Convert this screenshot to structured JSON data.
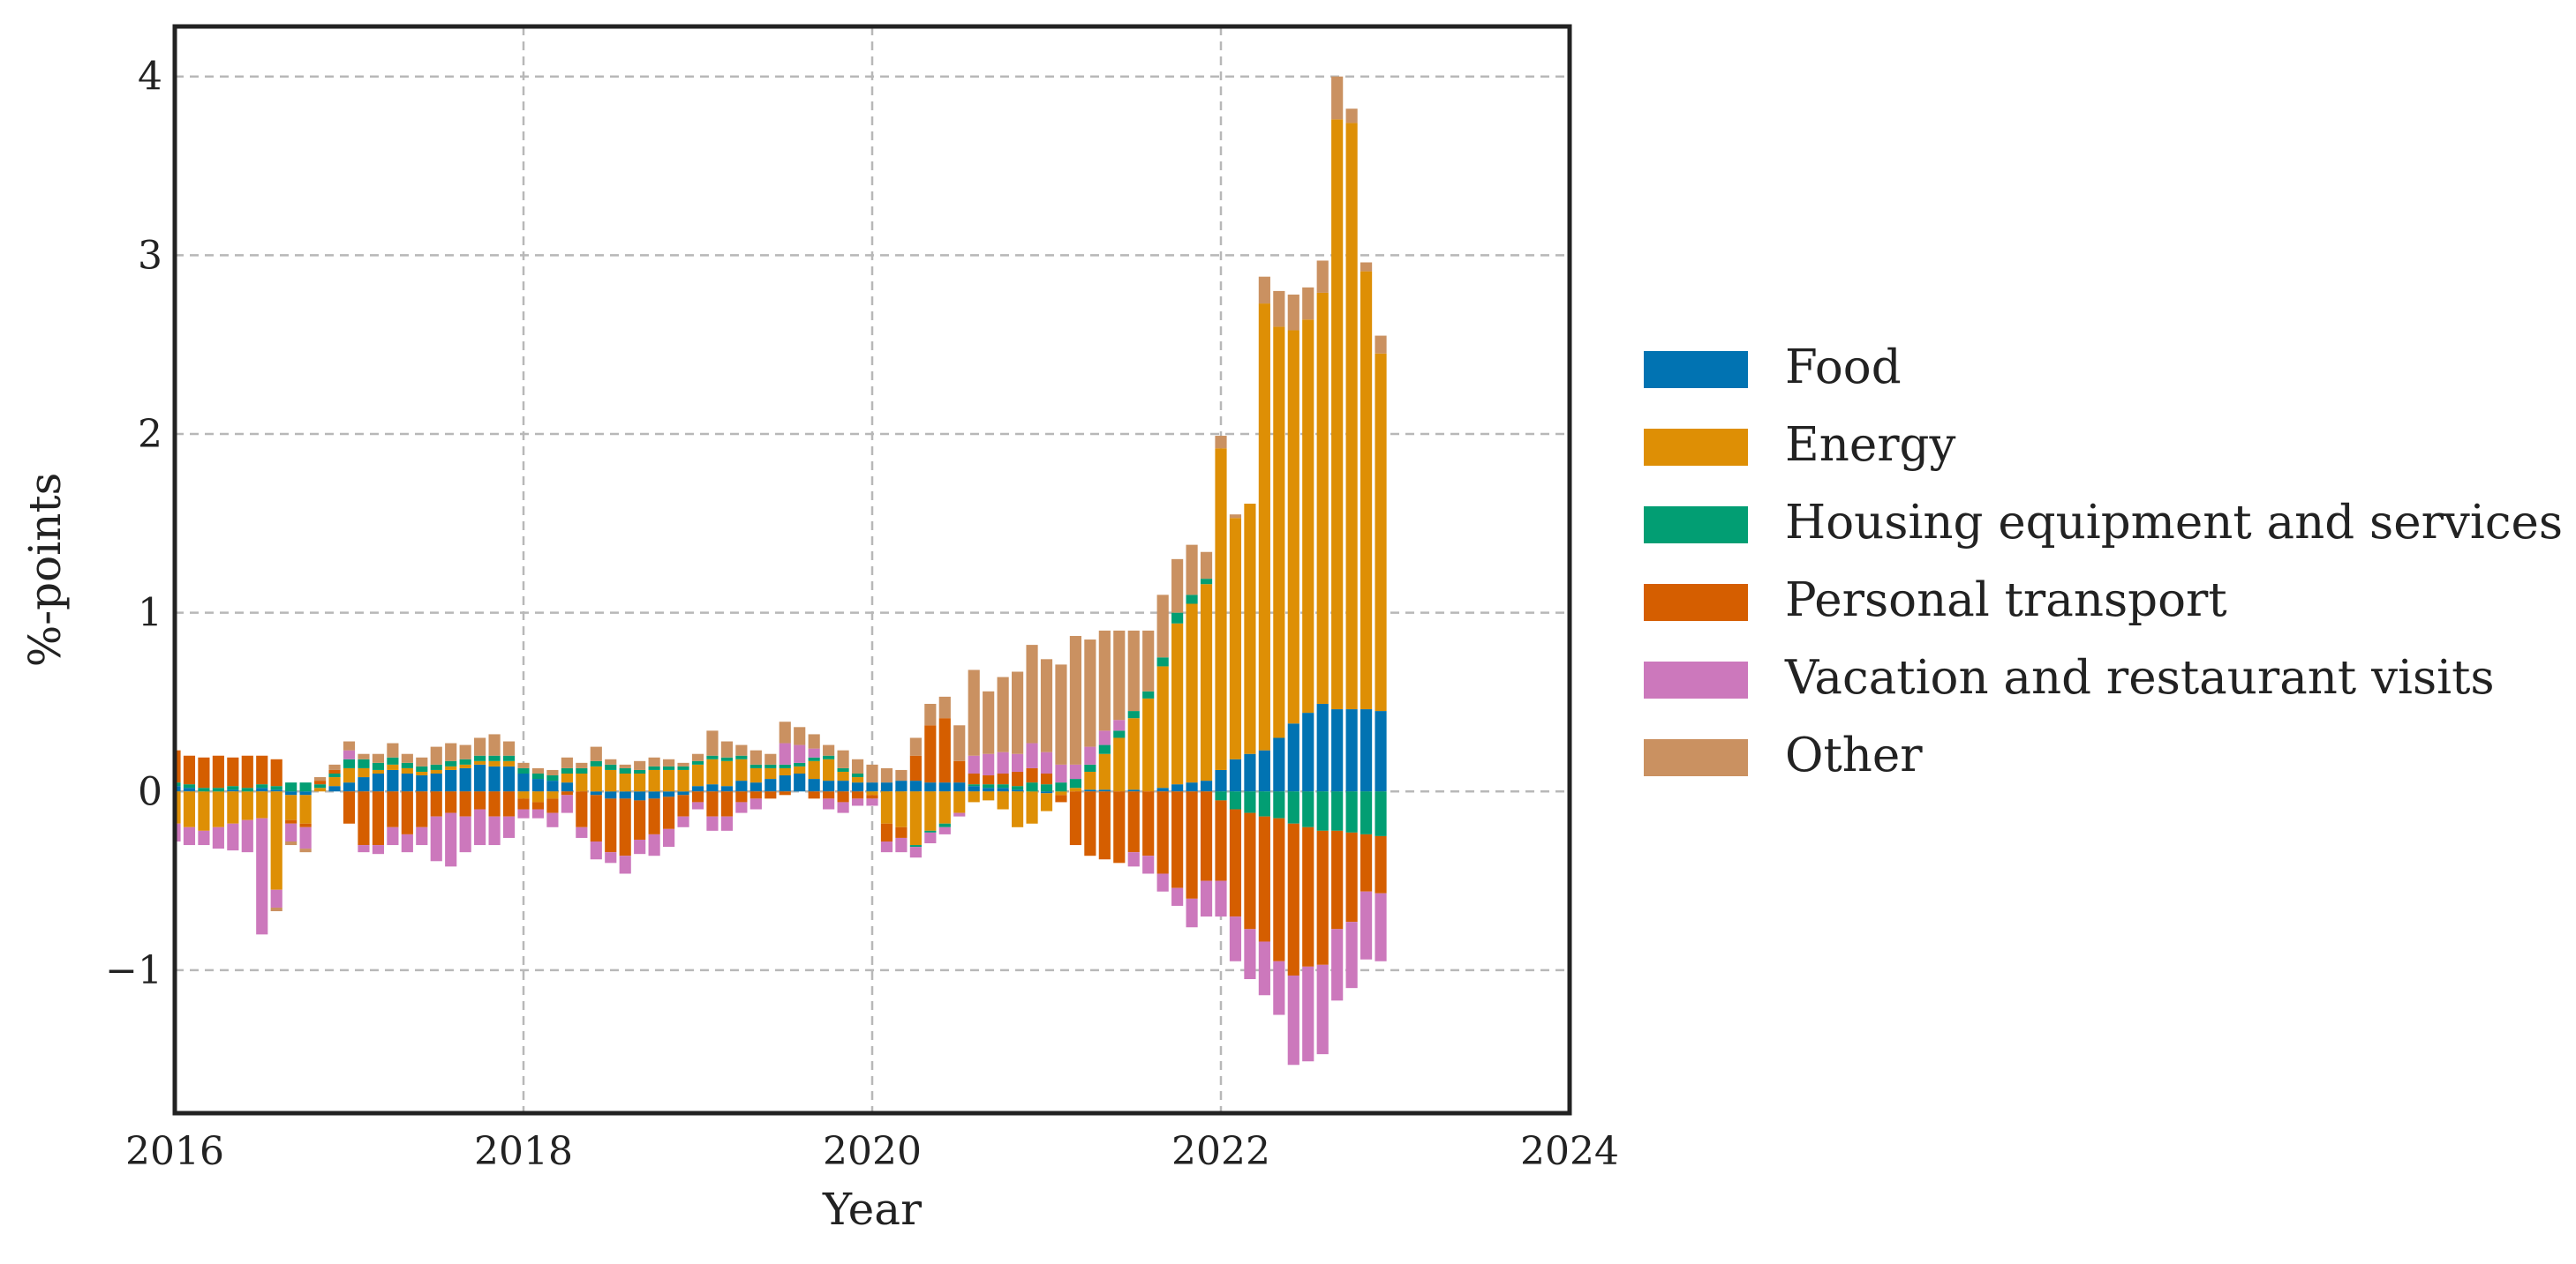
{
  "chart_data": {
    "type": "bar",
    "stacked": true,
    "title": "",
    "xlabel": "Year",
    "ylabel": "%-points",
    "xlim": [
      2016,
      2024
    ],
    "ylim": [
      -1.8,
      4.28
    ],
    "xticks": [
      2016,
      2018,
      2020,
      2022,
      2024
    ],
    "xtick_labels": [
      "2016",
      "2018",
      "2020",
      "2022",
      "2024"
    ],
    "yticks": [
      -1,
      0,
      1,
      2,
      3,
      4
    ],
    "ytick_labels": [
      "−1",
      "0",
      "1",
      "2",
      "3",
      "4"
    ],
    "grid": true,
    "legend_position": "right",
    "x_start": "2016-01",
    "x_step": "month",
    "x": [
      "2016-01",
      "2016-02",
      "2016-03",
      "2016-04",
      "2016-05",
      "2016-06",
      "2016-07",
      "2016-08",
      "2016-09",
      "2016-10",
      "2016-11",
      "2016-12",
      "2017-01",
      "2017-02",
      "2017-03",
      "2017-04",
      "2017-05",
      "2017-06",
      "2017-07",
      "2017-08",
      "2017-09",
      "2017-10",
      "2017-11",
      "2017-12",
      "2018-01",
      "2018-02",
      "2018-03",
      "2018-04",
      "2018-05",
      "2018-06",
      "2018-07",
      "2018-08",
      "2018-09",
      "2018-10",
      "2018-11",
      "2018-12",
      "2019-01",
      "2019-02",
      "2019-03",
      "2019-04",
      "2019-05",
      "2019-06",
      "2019-07",
      "2019-08",
      "2019-09",
      "2019-10",
      "2019-11",
      "2019-12",
      "2020-01",
      "2020-02",
      "2020-03",
      "2020-04",
      "2020-05",
      "2020-06",
      "2020-07",
      "2020-08",
      "2020-09",
      "2020-10",
      "2020-11",
      "2020-12",
      "2021-01",
      "2021-02",
      "2021-03",
      "2021-04",
      "2021-05",
      "2021-06",
      "2021-07",
      "2021-08",
      "2021-09",
      "2021-10",
      "2021-11",
      "2021-12",
      "2022-01",
      "2022-02",
      "2022-03",
      "2022-04",
      "2022-05",
      "2022-06",
      "2022-07",
      "2022-08",
      "2022-09",
      "2022-10",
      "2022-11",
      "2022-12"
    ],
    "series": [
      {
        "name": "Food",
        "color": "#0173b2",
        "values": [
          0.03,
          0.02,
          0.0,
          0.0,
          0.01,
          0.0,
          0.02,
          0.01,
          -0.02,
          -0.02,
          0.0,
          0.03,
          0.05,
          0.08,
          0.1,
          0.12,
          0.1,
          0.09,
          0.1,
          0.12,
          0.13,
          0.15,
          0.14,
          0.14,
          0.1,
          0.07,
          0.06,
          0.05,
          0.0,
          -0.02,
          -0.04,
          -0.04,
          -0.05,
          -0.04,
          -0.03,
          -0.02,
          0.03,
          0.04,
          0.03,
          0.06,
          0.05,
          0.07,
          0.09,
          0.1,
          0.07,
          0.06,
          0.06,
          0.05,
          0.05,
          0.05,
          0.06,
          0.06,
          0.05,
          0.05,
          0.05,
          0.03,
          0.02,
          0.02,
          0.01,
          0.0,
          -0.01,
          0.0,
          0.0,
          0.01,
          0.01,
          0.0,
          0.01,
          0.0,
          0.02,
          0.04,
          0.05,
          0.06,
          0.12,
          0.18,
          0.21,
          0.23,
          0.3,
          0.38,
          0.44,
          0.49,
          0.46,
          0.46,
          0.46,
          0.45
        ]
      },
      {
        "name": "Energy",
        "color": "#de8f05",
        "values": [
          -0.18,
          -0.2,
          -0.22,
          -0.2,
          -0.18,
          -0.16,
          -0.15,
          -0.55,
          -0.14,
          -0.16,
          0.02,
          0.05,
          0.08,
          0.05,
          0.02,
          0.03,
          0.03,
          0.02,
          0.02,
          0.02,
          0.02,
          0.02,
          0.03,
          0.03,
          -0.04,
          -0.06,
          -0.04,
          0.05,
          0.1,
          0.14,
          0.12,
          0.1,
          0.1,
          0.12,
          0.12,
          0.12,
          0.12,
          0.14,
          0.14,
          0.12,
          0.08,
          0.06,
          0.04,
          0.04,
          0.1,
          0.12,
          0.05,
          0.03,
          -0.02,
          -0.18,
          -0.2,
          -0.3,
          -0.22,
          -0.18,
          -0.12,
          -0.06,
          -0.05,
          -0.1,
          -0.2,
          -0.18,
          -0.1,
          -0.02,
          0.02,
          0.1,
          0.2,
          0.3,
          0.4,
          0.52,
          0.68,
          0.9,
          1.0,
          1.1,
          1.8,
          1.35,
          1.4,
          2.5,
          2.3,
          2.2,
          2.2,
          2.3,
          3.3,
          3.28,
          2.45,
          2.0
        ]
      },
      {
        "name": "Housing equipment and services",
        "color": "#029e73",
        "values": [
          0.02,
          0.02,
          0.02,
          0.02,
          0.02,
          0.02,
          0.02,
          0.02,
          0.05,
          0.05,
          0.02,
          0.02,
          0.05,
          0.05,
          0.04,
          0.04,
          0.03,
          0.03,
          0.03,
          0.03,
          0.03,
          0.03,
          0.03,
          0.03,
          0.03,
          0.03,
          0.03,
          0.03,
          0.03,
          0.03,
          0.03,
          0.03,
          0.02,
          0.02,
          0.02,
          0.02,
          0.02,
          0.02,
          0.02,
          0.02,
          0.02,
          0.02,
          0.02,
          0.02,
          0.02,
          0.02,
          0.02,
          0.02,
          0.0,
          0.0,
          0.0,
          -0.01,
          -0.01,
          -0.02,
          0.0,
          0.01,
          0.02,
          0.02,
          0.02,
          0.05,
          0.04,
          0.05,
          0.05,
          0.04,
          0.05,
          0.04,
          0.04,
          0.04,
          0.05,
          0.06,
          0.05,
          0.03,
          -0.05,
          -0.1,
          -0.12,
          -0.14,
          -0.15,
          -0.18,
          -0.2,
          -0.22,
          -0.22,
          -0.23,
          -0.24,
          -0.25
        ]
      },
      {
        "name": "Personal transport",
        "color": "#d55e00",
        "values": [
          0.18,
          0.16,
          0.17,
          0.18,
          0.16,
          0.18,
          0.16,
          0.15,
          -0.02,
          -0.02,
          0.02,
          0.02,
          -0.18,
          -0.3,
          -0.3,
          -0.2,
          -0.24,
          -0.2,
          -0.14,
          -0.12,
          -0.14,
          -0.1,
          -0.14,
          -0.14,
          -0.06,
          -0.04,
          -0.08,
          -0.02,
          -0.2,
          -0.26,
          -0.3,
          -0.32,
          -0.22,
          -0.2,
          -0.18,
          -0.12,
          -0.06,
          -0.14,
          -0.14,
          -0.06,
          -0.04,
          -0.04,
          -0.02,
          0.0,
          -0.04,
          -0.04,
          -0.06,
          -0.04,
          -0.02,
          -0.1,
          -0.06,
          0.14,
          0.32,
          0.36,
          0.12,
          0.06,
          0.05,
          0.06,
          0.08,
          0.08,
          0.06,
          -0.04,
          -0.3,
          -0.36,
          -0.38,
          -0.4,
          -0.34,
          -0.36,
          -0.46,
          -0.54,
          -0.6,
          -0.5,
          -0.45,
          -0.6,
          -0.65,
          -0.7,
          -0.8,
          -0.85,
          -0.78,
          -0.75,
          -0.55,
          -0.5,
          -0.32,
          -0.32
        ]
      },
      {
        "name": "Vacation and restaurant visits",
        "color": "#cc78bc",
        "values": [
          -0.1,
          -0.1,
          -0.08,
          -0.12,
          -0.15,
          -0.18,
          -0.65,
          -0.1,
          -0.1,
          -0.12,
          0.0,
          0.0,
          0.05,
          -0.04,
          -0.05,
          -0.1,
          -0.1,
          -0.1,
          -0.25,
          -0.3,
          -0.2,
          -0.2,
          -0.16,
          -0.12,
          -0.05,
          -0.05,
          -0.08,
          -0.1,
          -0.06,
          -0.1,
          -0.06,
          -0.1,
          -0.08,
          -0.12,
          -0.1,
          -0.06,
          -0.04,
          -0.08,
          -0.08,
          -0.06,
          -0.06,
          0.0,
          0.12,
          0.1,
          0.05,
          -0.06,
          -0.06,
          -0.04,
          -0.04,
          -0.06,
          -0.08,
          -0.06,
          -0.06,
          -0.04,
          -0.02,
          0.1,
          0.12,
          0.12,
          0.1,
          0.14,
          0.12,
          0.1,
          0.08,
          0.1,
          0.08,
          0.06,
          -0.08,
          -0.1,
          -0.1,
          -0.1,
          -0.16,
          -0.2,
          -0.2,
          -0.25,
          -0.28,
          -0.3,
          -0.3,
          -0.5,
          -0.53,
          -0.5,
          -0.4,
          -0.37,
          -0.38,
          -0.38
        ]
      },
      {
        "name": "Other",
        "color": "#ca9161",
        "values": [
          0.0,
          0.0,
          0.0,
          0.0,
          0.0,
          0.0,
          0.0,
          -0.02,
          -0.02,
          -0.02,
          0.02,
          0.03,
          0.05,
          0.03,
          0.05,
          0.08,
          0.05,
          0.05,
          0.1,
          0.1,
          0.08,
          0.1,
          0.12,
          0.08,
          0.03,
          0.03,
          0.03,
          0.06,
          0.03,
          0.08,
          0.03,
          0.02,
          0.05,
          0.05,
          0.04,
          0.02,
          0.04,
          0.14,
          0.09,
          0.06,
          0.08,
          0.06,
          0.12,
          0.1,
          0.08,
          0.06,
          0.1,
          0.08,
          0.1,
          0.08,
          0.06,
          0.1,
          0.12,
          0.12,
          0.2,
          0.48,
          0.35,
          0.42,
          0.46,
          0.55,
          0.52,
          0.56,
          0.72,
          0.6,
          0.56,
          0.5,
          0.45,
          0.34,
          0.35,
          0.3,
          0.28,
          0.15,
          0.07,
          0.02,
          0.0,
          0.15,
          0.2,
          0.2,
          0.18,
          0.18,
          0.24,
          0.08,
          0.05,
          0.1
        ]
      }
    ]
  }
}
